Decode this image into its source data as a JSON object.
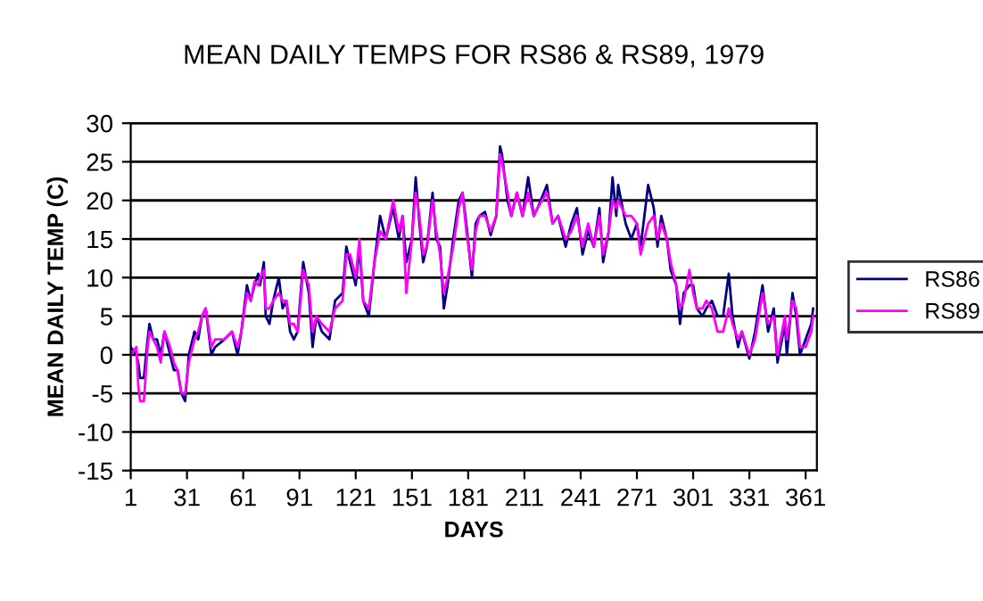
{
  "chart_data": {
    "type": "line",
    "title": "MEAN DAILY TEMPS FOR RS86 & RS89, 1979",
    "xlabel": "DAYS",
    "ylabel": "MEAN DAILY TEMP (C)",
    "x": [
      1,
      4,
      5,
      6,
      8,
      10,
      11,
      13,
      15,
      17,
      19,
      22,
      24,
      26,
      28,
      30,
      32,
      35,
      37,
      39,
      41,
      44,
      46,
      51,
      55,
      58,
      60,
      63,
      65,
      67,
      69,
      70,
      72,
      73,
      75,
      77,
      80,
      82,
      84,
      86,
      88,
      90,
      92,
      93,
      96,
      98,
      100,
      103,
      107,
      110,
      114,
      116,
      118,
      121,
      123,
      125,
      128,
      131,
      134,
      137,
      141,
      144,
      146,
      148,
      151,
      153,
      155,
      157,
      159,
      162,
      164,
      166,
      168,
      170,
      173,
      176,
      178,
      180,
      183,
      185,
      187,
      190,
      193,
      196,
      198,
      199,
      202,
      204,
      207,
      210,
      213,
      216,
      218,
      223,
      226,
      229,
      233,
      236,
      239,
      242,
      245,
      248,
      251,
      253,
      256,
      258,
      260,
      261,
      265,
      268,
      271,
      273,
      277,
      280,
      282,
      284,
      287,
      289,
      292,
      294,
      296,
      299,
      301,
      303,
      306,
      308,
      311,
      314,
      317,
      320,
      322,
      325,
      327,
      331,
      334,
      338,
      341,
      344,
      346,
      350,
      351,
      354,
      356,
      358,
      361,
      364,
      365
    ],
    "series": [
      {
        "name": "RS86",
        "color": "#000080",
        "values": [
          1,
          0,
          -1,
          -3,
          -3,
          2,
          4,
          2,
          2,
          0,
          3,
          0,
          -2,
          -2,
          -5,
          -6,
          0,
          3,
          2,
          5,
          6,
          0,
          1,
          2,
          3,
          0,
          3,
          9,
          7,
          9,
          10.5,
          9,
          12,
          5,
          4,
          7,
          10,
          6,
          7,
          3,
          2,
          3,
          9,
          12,
          8,
          1,
          5,
          3,
          2,
          7,
          8,
          14,
          12,
          9,
          14,
          7,
          5,
          12,
          18,
          15,
          19,
          15,
          18,
          12,
          15,
          23,
          17,
          12,
          14,
          21,
          15,
          14,
          6,
          9,
          15,
          20,
          21,
          17,
          10,
          17,
          18,
          18.5,
          15.5,
          18,
          27,
          26,
          20,
          18,
          21,
          18,
          23,
          18,
          19,
          22,
          17,
          18,
          14,
          17,
          19,
          13,
          16,
          14,
          19,
          12,
          16,
          23,
          18,
          22,
          17,
          15,
          17,
          14,
          22,
          19,
          14,
          18,
          15,
          11,
          9,
          4,
          8,
          9,
          9,
          6,
          5,
          6,
          7,
          5,
          5,
          10.5,
          5,
          1,
          3,
          -0.5,
          3,
          9,
          3,
          6,
          -1,
          4,
          0,
          8,
          5,
          0,
          2,
          4,
          6
        ]
      },
      {
        "name": "RS89",
        "color": "#ff00ff",
        "values": [
          0,
          1,
          -4,
          -6,
          -6,
          1,
          3,
          2,
          1,
          -1,
          3,
          1,
          -1,
          -2,
          -5,
          -5,
          -1,
          2,
          3,
          5,
          6,
          1,
          2,
          2,
          3,
          1,
          3,
          8,
          7,
          9.5,
          9,
          10,
          11,
          6,
          6,
          7,
          8,
          7,
          7,
          4,
          4,
          3,
          8,
          11,
          9,
          3,
          5,
          4,
          3,
          6,
          7,
          13,
          13,
          10,
          15,
          7,
          6,
          12,
          16,
          15,
          20,
          16,
          18,
          8,
          15,
          21,
          18,
          13,
          14,
          20,
          16,
          13,
          8,
          10,
          14,
          19,
          21,
          16,
          11,
          16,
          18,
          18,
          16,
          18,
          26,
          25,
          21,
          18,
          21,
          18,
          21,
          18,
          19,
          21,
          17,
          18,
          15,
          16,
          18,
          14,
          17,
          14,
          18,
          13,
          16,
          20,
          19,
          20,
          18,
          18,
          17,
          13,
          17,
          18,
          15,
          17,
          15,
          12,
          9,
          6,
          7,
          11,
          8,
          6,
          6,
          7,
          6,
          3,
          3,
          6,
          4,
          2,
          3,
          0,
          2,
          8,
          4,
          5,
          0,
          5,
          2,
          7,
          6,
          1,
          1,
          3,
          5
        ]
      }
    ],
    "xlim": [
      1,
      367
    ],
    "xticks": [
      1,
      31,
      61,
      91,
      121,
      151,
      181,
      211,
      241,
      271,
      301,
      331,
      361
    ],
    "ylim": [
      -15,
      30
    ],
    "yticks": [
      -15,
      -10,
      -5,
      0,
      5,
      10,
      15,
      20,
      25,
      30
    ],
    "grid": "y",
    "legend": "right",
    "marker": "none",
    "line_style": "solid"
  }
}
